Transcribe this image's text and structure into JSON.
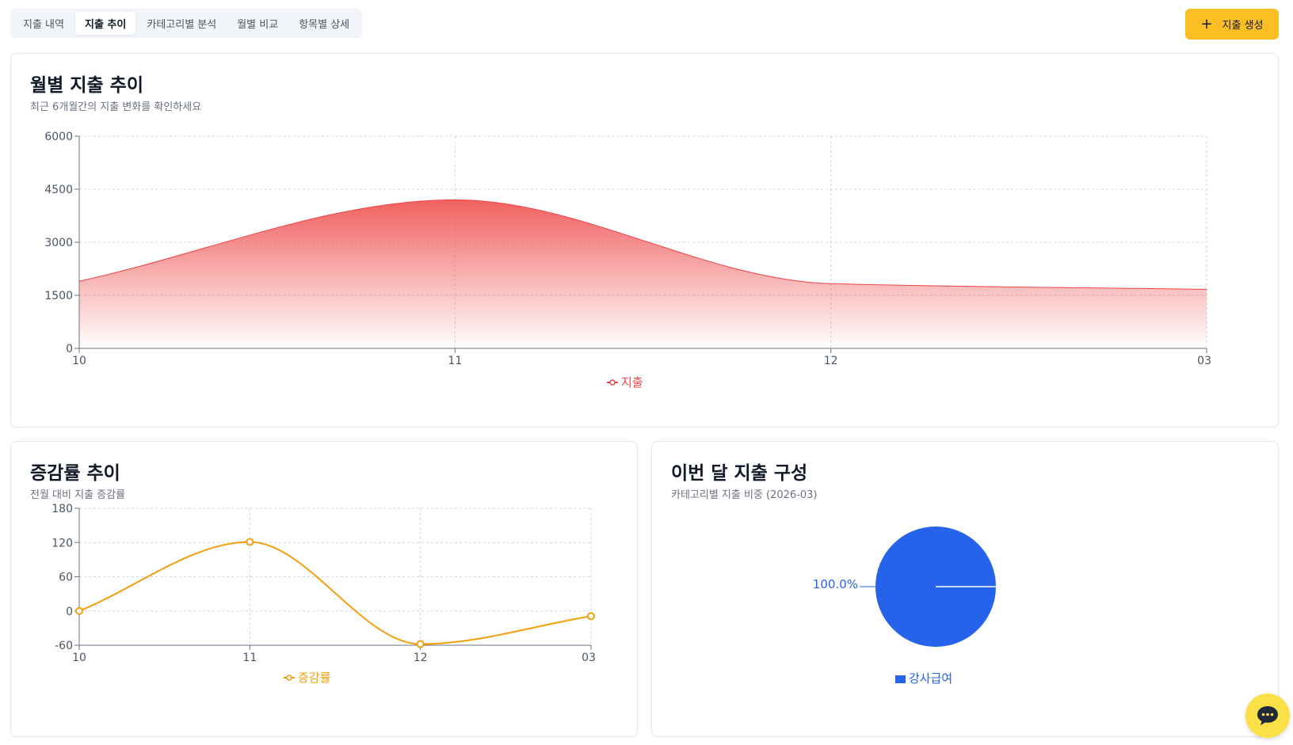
{
  "tabs": [
    {
      "label": "지출 내역",
      "active": false
    },
    {
      "label": "지출 추이",
      "active": true
    },
    {
      "label": "카테고리별 분석",
      "active": false
    },
    {
      "label": "월별 비교",
      "active": false
    },
    {
      "label": "항목별 상세",
      "active": false
    }
  ],
  "create_button": {
    "icon": "plus-icon",
    "label": "지출 생성"
  },
  "colors": {
    "accent": "#fbbf24",
    "expense": "#ef4444",
    "rate": "#f59e0b",
    "category": "#2563eb"
  },
  "monthly_card": {
    "title": "월별 지출 추이",
    "subtitle": "최근 6개월간의 지출 변화를 확인하세요"
  },
  "rate_card": {
    "title": "증감률 추이",
    "subtitle": "전월 대비 지출 증감률"
  },
  "composition_card": {
    "title": "이번 달 지출 구성",
    "subtitle": "카테고리별 지출 비중 (2026-03)"
  },
  "chart_data": [
    {
      "type": "area",
      "categories": [
        "10",
        "11",
        "12",
        "03"
      ],
      "series": [
        {
          "name": "지출",
          "values": [
            1900,
            4200,
            1830,
            1670
          ]
        }
      ],
      "yticks": [
        "0",
        "1500",
        "3000",
        "4500",
        "6000"
      ],
      "ylim": [
        0,
        6000
      ],
      "grid": true,
      "legend": "bottom"
    },
    {
      "type": "line",
      "categories": [
        "10",
        "11",
        "12",
        "03"
      ],
      "series": [
        {
          "name": "증감률",
          "values": [
            0,
            121,
            -58,
            -9
          ]
        }
      ],
      "yticks": [
        "-60",
        "0",
        "60",
        "120",
        "180"
      ],
      "ylim": [
        -60,
        180
      ],
      "grid": true,
      "legend": "bottom"
    },
    {
      "type": "pie",
      "slices": [
        {
          "name": "강사급여",
          "value": 100.0,
          "label": "100.0%"
        }
      ],
      "legend": "bottom"
    }
  ],
  "chat_button": {
    "icon": "chat-bubble-icon"
  }
}
